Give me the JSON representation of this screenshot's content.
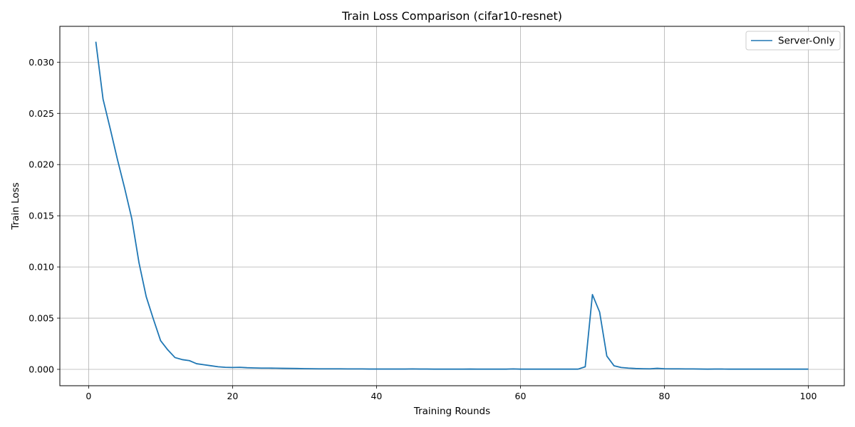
{
  "chart_data": {
    "type": "line",
    "title": "Train Loss Comparison (cifar10-resnet)",
    "xlabel": "Training Rounds",
    "ylabel": "Train Loss",
    "xlim": [
      -4,
      105
    ],
    "ylim": [
      -0.0016,
      0.0335
    ],
    "xticks": [
      0,
      20,
      40,
      60,
      80,
      100
    ],
    "yticks": [
      0.0,
      0.005,
      0.01,
      0.015,
      0.02,
      0.025,
      0.03
    ],
    "xtick_labels": [
      "0",
      "20",
      "40",
      "60",
      "80",
      "100"
    ],
    "ytick_labels": [
      "0.000",
      "0.005",
      "0.010",
      "0.015",
      "0.020",
      "0.025",
      "0.030"
    ],
    "grid": true,
    "legend_position": "top-right",
    "series": [
      {
        "name": "Server-Only",
        "color": "#1f77b4",
        "x": [
          1,
          2,
          3,
          4,
          5,
          6,
          7,
          8,
          9,
          10,
          11,
          12,
          13,
          14,
          15,
          16,
          17,
          18,
          19,
          20,
          21,
          22,
          23,
          24,
          25,
          26,
          27,
          28,
          29,
          30,
          31,
          32,
          33,
          34,
          35,
          36,
          37,
          38,
          39,
          40,
          41,
          42,
          43,
          44,
          45,
          46,
          47,
          48,
          49,
          50,
          51,
          52,
          53,
          54,
          55,
          56,
          57,
          58,
          59,
          60,
          61,
          62,
          63,
          64,
          65,
          66,
          67,
          68,
          69,
          70,
          71,
          72,
          73,
          74,
          75,
          76,
          77,
          78,
          79,
          80,
          81,
          82,
          83,
          84,
          85,
          86,
          87,
          88,
          89,
          90,
          91,
          92,
          93,
          94,
          95,
          96,
          97,
          98,
          99,
          100
        ],
        "values": [
          0.032,
          0.0264,
          0.0235,
          0.0205,
          0.0177,
          0.0147,
          0.0104,
          0.0071,
          0.0049,
          0.0028,
          0.0019,
          0.00115,
          0.00095,
          0.00085,
          0.00055,
          0.00045,
          0.00035,
          0.00025,
          0.0002,
          0.00018,
          0.0002,
          0.00016,
          0.00014,
          0.00012,
          0.00012,
          0.00011,
          0.0001,
          9e-05,
          8e-05,
          7e-05,
          6e-05,
          5e-05,
          5e-05,
          5e-05,
          5e-05,
          4e-05,
          4e-05,
          4e-05,
          3e-05,
          3e-05,
          3e-05,
          3e-05,
          3e-05,
          3e-05,
          4e-05,
          3e-05,
          3e-05,
          2e-05,
          2e-05,
          2e-05,
          2e-05,
          2e-05,
          3e-05,
          2e-05,
          2e-05,
          2e-05,
          2e-05,
          2e-05,
          4e-05,
          2e-05,
          2e-05,
          2e-05,
          2e-05,
          2e-05,
          2e-05,
          2e-05,
          2e-05,
          2e-05,
          0.00025,
          0.0073,
          0.0056,
          0.0013,
          0.00035,
          0.00018,
          0.00012,
          8e-05,
          6e-05,
          5e-05,
          0.0001,
          6e-05,
          5e-05,
          5e-05,
          4e-05,
          4e-05,
          3e-05,
          2e-05,
          3e-05,
          3e-05,
          2e-05,
          2e-05,
          2e-05,
          2e-05,
          2e-05,
          2e-05,
          2e-05,
          2e-05,
          2e-05,
          2e-05,
          2e-05,
          2e-05
        ]
      }
    ]
  }
}
